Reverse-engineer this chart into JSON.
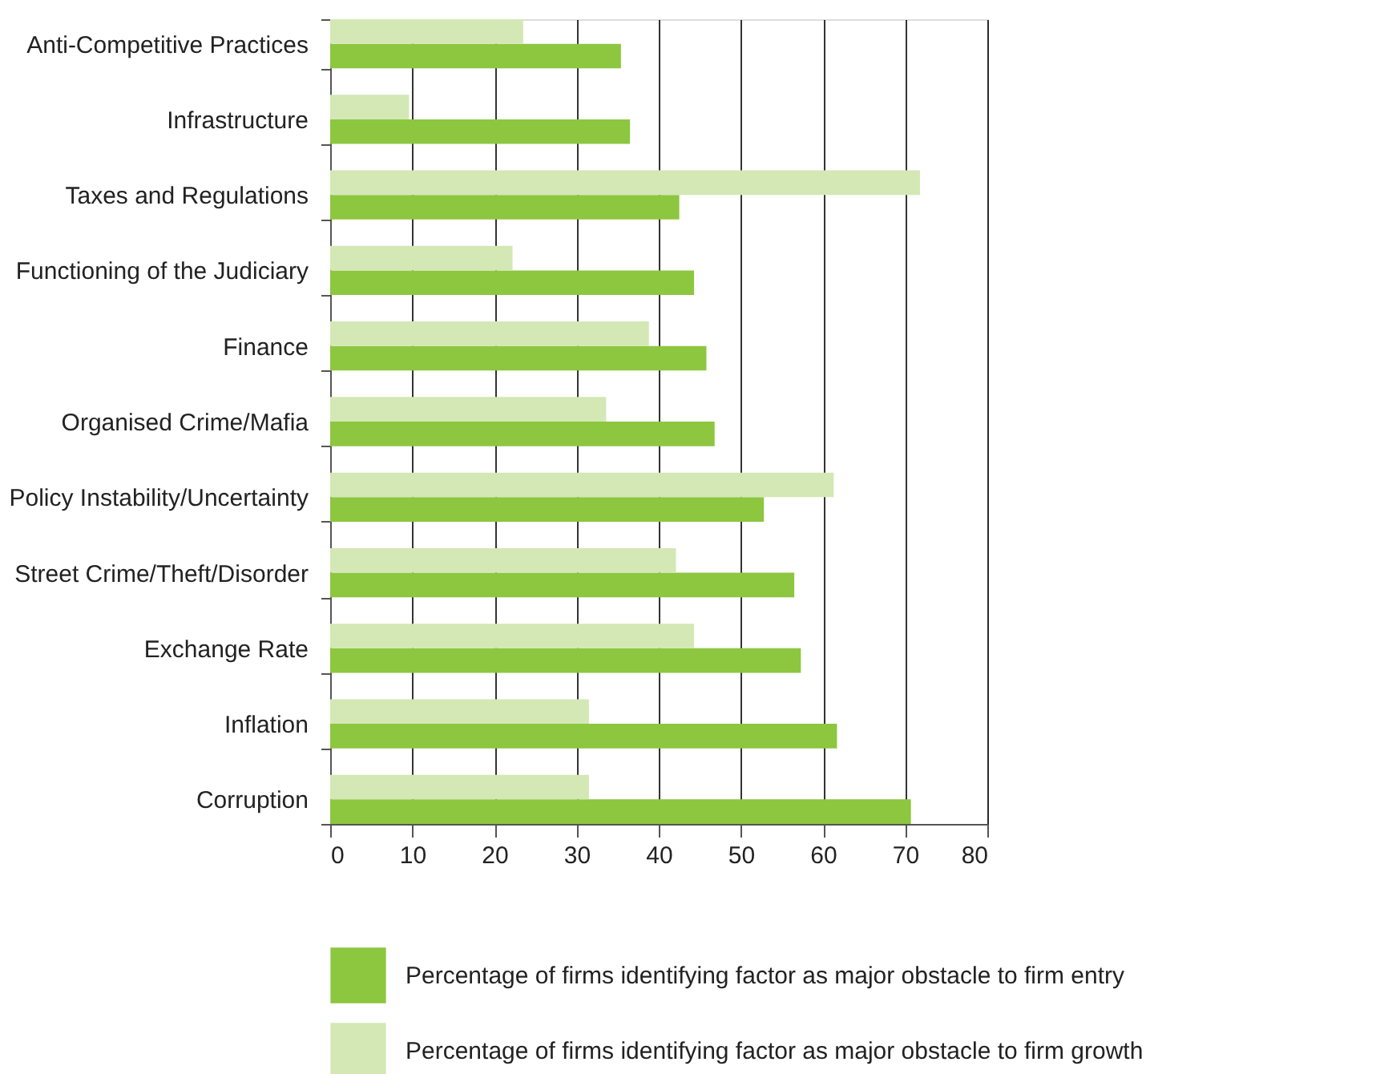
{
  "chart_data": {
    "type": "bar",
    "orientation": "horizontal",
    "categories": [
      "Anti-Competitive Practices",
      "Infrastructure",
      "Taxes and Regulations",
      "Functioning of the Judiciary",
      "Finance",
      "Organised Crime/Mafia",
      "Policy Instability/Uncertainty",
      "Street Crime/Theft/Disorder",
      "Exchange Rate",
      "Inflation",
      "Corruption"
    ],
    "series": [
      {
        "name": "Percentage of firms identifying factor as major obstacle to firm entry",
        "color": "#8dc63f",
        "values": [
          35.4,
          36.5,
          42.5,
          44.3,
          45.8,
          46.8,
          52.8,
          56.5,
          57.3,
          61.7,
          70.7
        ]
      },
      {
        "name": "Percentage of firms identifying factor as major obstacle to firm growth",
        "color": "#d3e8b5",
        "values": [
          23.5,
          9.6,
          71.8,
          22.2,
          38.8,
          33.6,
          61.3,
          42.1,
          44.3,
          31.5,
          31.5
        ]
      }
    ],
    "xlim": [
      0,
      80
    ],
    "xticks": [
      0,
      10,
      20,
      30,
      40,
      50,
      60,
      70,
      80
    ],
    "grid": "x",
    "legend": "bottom"
  }
}
